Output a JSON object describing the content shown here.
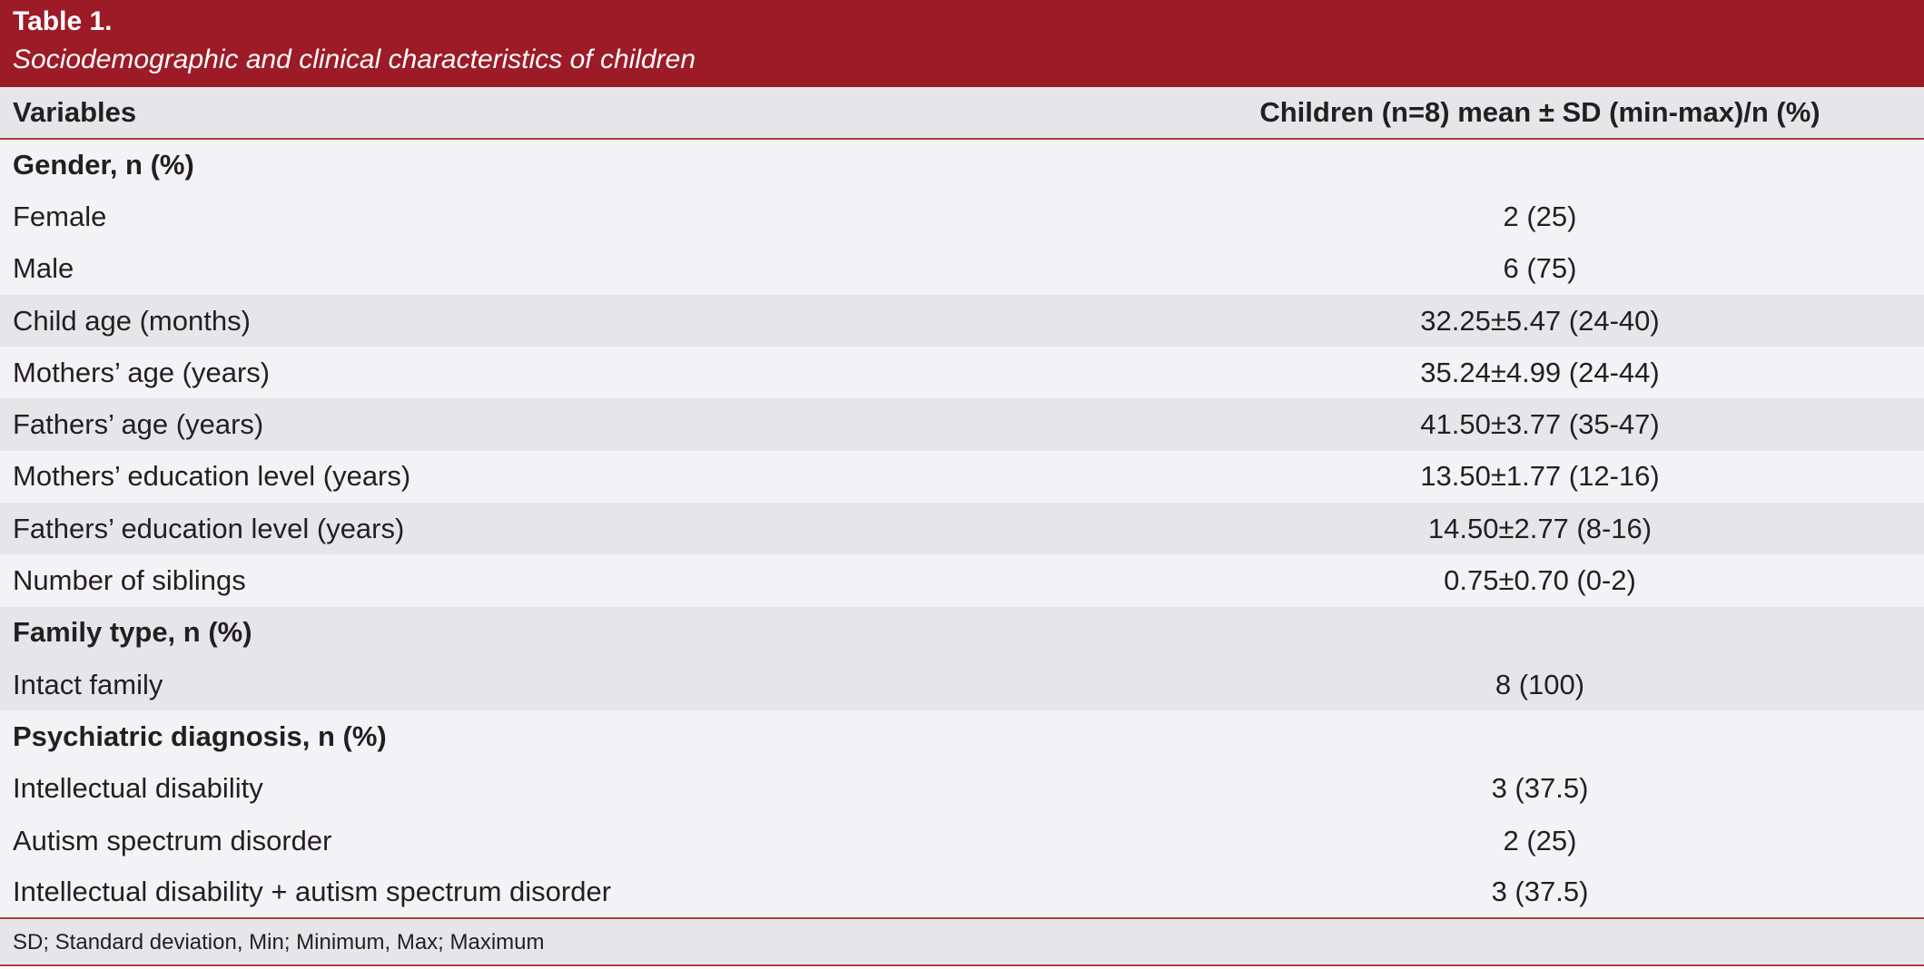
{
  "header": {
    "table_label": "Table 1.",
    "caption": "Sociodemographic and clinical characteristics of children"
  },
  "columns": {
    "variables": "Variables",
    "values": "Children (n=8) mean ± SD (min-max)/n (%)"
  },
  "rows": [
    {
      "label": "Gender, n (%)",
      "value": ""
    },
    {
      "label": "Female",
      "value": "2 (25)"
    },
    {
      "label": "Male",
      "value": "6 (75)"
    },
    {
      "label": "Child age (months)",
      "value": "32.25±5.47 (24-40)"
    },
    {
      "label": "Mothers’ age (years)",
      "value": "35.24±4.99 (24-44)"
    },
    {
      "label": "Fathers’ age (years)",
      "value": "41.50±3.77 (35-47)"
    },
    {
      "label": "Mothers’ education level (years)",
      "value": "13.50±1.77 (12-16)"
    },
    {
      "label": "Fathers’ education level (years)",
      "value": "14.50±2.77 (8-16)"
    },
    {
      "label": "Number of siblings",
      "value": "0.75±0.70 (0-2)"
    },
    {
      "label": "Family type, n (%)",
      "value": ""
    },
    {
      "label": "Intact family",
      "value": "8 (100)"
    },
    {
      "label": "Psychiatric diagnosis, n (%)",
      "value": ""
    },
    {
      "label": "Intellectual disability",
      "value": "3 (37.5)"
    },
    {
      "label": "Autism spectrum disorder",
      "value": "2 (25)"
    },
    {
      "label": "Intellectual disability + autism spectrum disorder",
      "value": "3 (37.5)"
    }
  ],
  "footnote": "SD; Standard deviation, Min; Minimum, Max; Maximum",
  "colors": {
    "header_bg": "#9c1b27",
    "rule": "#b23a44",
    "row_shade": "#e6e6e8",
    "row_light": "#f3f3f5"
  }
}
